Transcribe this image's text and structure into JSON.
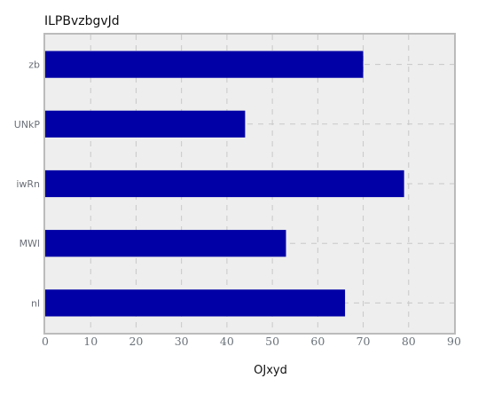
{
  "chart_data": {
    "type": "bar",
    "orientation": "horizontal",
    "title": "ILPBvzbgvJd",
    "xlabel": "OJxyd",
    "ylabel": "",
    "categories": [
      "zb",
      "UNkP",
      "iwRn",
      "MWl",
      "nl"
    ],
    "values": [
      70,
      44,
      79,
      53,
      66
    ],
    "xlim": [
      0,
      90
    ],
    "xticks": [
      0,
      10,
      20,
      30,
      40,
      50,
      60,
      70,
      80,
      90
    ],
    "grid": true,
    "legend": "none",
    "colors": {
      "bar": "#0000a6",
      "plot_background": "#eeeeee",
      "border": "#bbbbbb",
      "grid": "#c8c8c8"
    }
  }
}
